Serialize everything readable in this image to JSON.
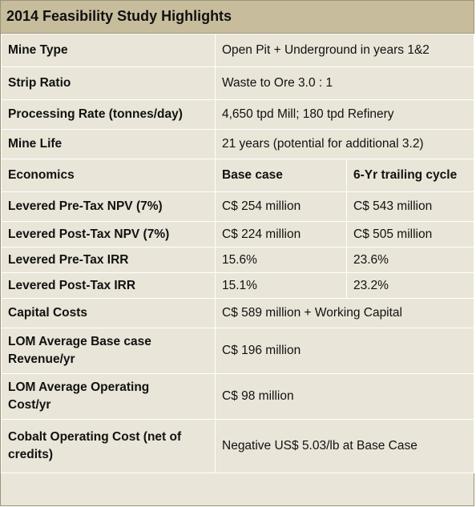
{
  "title": "2014 Feasibility Study Highlights",
  "rows": {
    "mine_type": {
      "label": "Mine Type",
      "value": "Open Pit + Underground in years 1&2"
    },
    "strip_ratio": {
      "label": "Strip Ratio",
      "value": "Waste to Ore 3.0 : 1"
    },
    "processing_rate": {
      "label": "Processing Rate (tonnes/day)",
      "value": "4,650 tpd Mill; 180 tpd Refinery"
    },
    "mine_life": {
      "label": "Mine Life",
      "value": "21 years (potential for additional 3.2)"
    },
    "economics": {
      "label": "Economics",
      "col1": "Base case",
      "col2": "6-Yr trailing cycle"
    },
    "pre_tax_npv": {
      "label": "Levered Pre-Tax NPV (7%)",
      "base": "C$ 254 million",
      "trailing": "C$ 543 million"
    },
    "post_tax_npv": {
      "label": "Levered Post-Tax NPV (7%)",
      "base": "C$ 224 million",
      "trailing": "C$ 505 million"
    },
    "pre_tax_irr": {
      "label": "Levered Pre-Tax IRR",
      "base": "15.6%",
      "trailing": "23.6%"
    },
    "post_tax_irr": {
      "label": "Levered Post-Tax IRR",
      "base": "15.1%",
      "trailing": "23.2%"
    },
    "capital_costs": {
      "label": "Capital Costs",
      "value": "C$ 589 million + Working Capital"
    },
    "lom_revenue": {
      "label_line1": "LOM Average Base case",
      "label_line2": "Revenue/yr",
      "value": "C$ 196 million"
    },
    "lom_opex": {
      "label_line1": "LOM Average Operating",
      "label_line2": "Cost/yr",
      "value": "C$ 98 million"
    },
    "cobalt_cost": {
      "label_line1": "Cobalt Operating Cost (net of",
      "label_line2": "credits)",
      "value": "Negative US$ 5.03/lb at Base Case"
    }
  }
}
